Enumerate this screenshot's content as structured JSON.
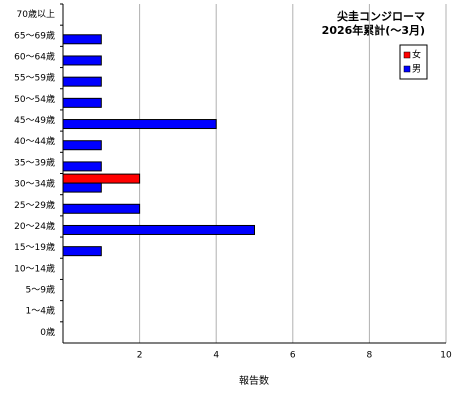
{
  "chart_data": {
    "type": "hbar",
    "title": "尖圭コンジローマ",
    "subtitle": "2026年累計(〜3月)",
    "xlabel": "報告数",
    "categories": [
      "70歳以上",
      "65〜69歳",
      "60〜64歳",
      "55〜59歳",
      "50〜54歳",
      "45〜49歳",
      "40〜44歳",
      "35〜39歳",
      "30〜34歳",
      "25〜29歳",
      "20〜24歳",
      "15〜19歳",
      "10〜14歳",
      "5〜9歳",
      "1〜4歳",
      "0歳"
    ],
    "series": [
      {
        "name": "女",
        "color": "#ff0000",
        "values": [
          0,
          0,
          0,
          0,
          0,
          0,
          0,
          0,
          2,
          0,
          0,
          0,
          0,
          0,
          0,
          0
        ]
      },
      {
        "name": "男",
        "color": "#0000ff",
        "values": [
          0,
          1,
          1,
          1,
          1,
          4,
          1,
          1,
          1,
          2,
          5,
          1,
          0,
          0,
          0,
          0
        ]
      }
    ],
    "xlim": [
      0,
      10
    ],
    "xticks": [
      2,
      4,
      6,
      8,
      10
    ],
    "grid": true,
    "legend": "upper right"
  }
}
